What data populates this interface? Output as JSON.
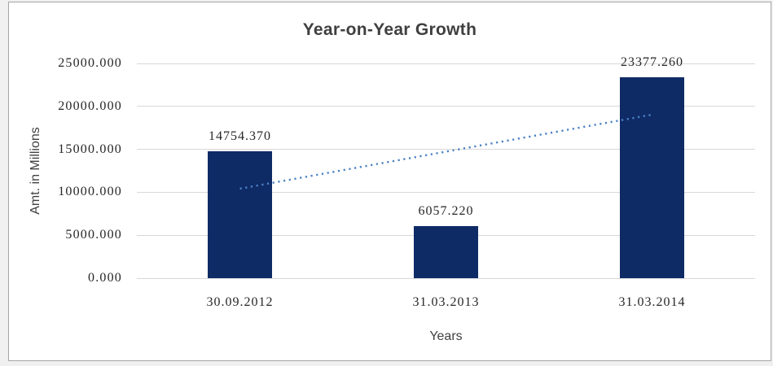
{
  "chart_data": {
    "type": "bar",
    "title": "Year-on-Year Growth",
    "xlabel": "Years",
    "ylabel": "Amt. in Millions",
    "categories": [
      "30.09.2012",
      "31.03.2013",
      "31.03.2014"
    ],
    "values": [
      14754.37,
      6057.22,
      23377.26
    ],
    "data_labels": [
      "14754.370",
      "6057.220",
      "23377.260"
    ],
    "ylim": [
      0,
      25000
    ],
    "ytick_step": 5000,
    "ytick_labels": [
      "0.000",
      "5000.000",
      "10000.000",
      "15000.000",
      "20000.000",
      "25000.000"
    ],
    "grid": true,
    "legend": false,
    "colors": {
      "bar": "#0e2b66",
      "trendline": "#4c82c4",
      "gridline": "#d8d8d8",
      "text": "#262626",
      "title_text": "#3f3f3f",
      "frame_border": "#a6a6a6",
      "outer_margin": "#f0f0f0"
    },
    "trendline": {
      "type": "linear",
      "style": "dotted"
    }
  }
}
